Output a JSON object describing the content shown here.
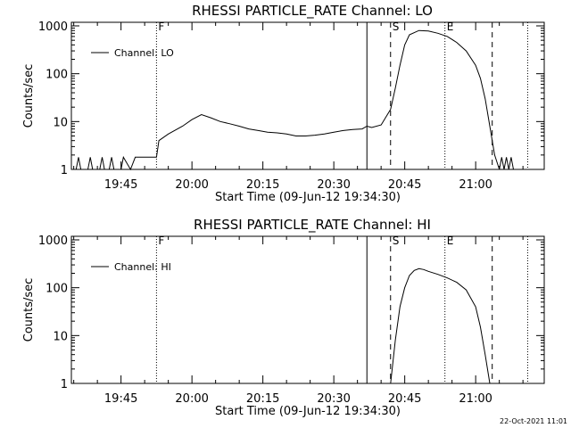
{
  "footer": {
    "timestamp": "22-Oct-2021 11:01"
  },
  "chart_data": [
    {
      "type": "line",
      "title": "RHESSI PARTICLE_RATE Channel: LO",
      "xlabel": "Start Time (09-Jun-12 19:34:30)",
      "ylabel": "Counts/sec",
      "y_scale": "log",
      "ylim": [
        1,
        1000
      ],
      "xlim": [
        "19:34:30",
        "21:14:30"
      ],
      "x_tick_labels": [
        "19:45",
        "20:00",
        "20:15",
        "20:30",
        "20:45",
        "21:00"
      ],
      "y_tick_labels": [
        "1",
        "10",
        "100",
        "1000"
      ],
      "legend": {
        "label": "Channel: LO",
        "placement": "top-left"
      },
      "markers": [
        {
          "label": "F",
          "time": "19:52:30",
          "style": "dotted"
        },
        {
          "label": "",
          "time": "20:37:00",
          "style": "solid"
        },
        {
          "label": "S",
          "time": "20:42:00",
          "style": "dashed"
        },
        {
          "label": "E",
          "time": "20:53:30",
          "style": "dotted"
        },
        {
          "label": "",
          "time": "21:03:30",
          "style": "dashed"
        },
        {
          "label": "",
          "time": "21:11:00",
          "style": "dotted"
        }
      ],
      "series": [
        {
          "name": "Channel: LO",
          "x": [
            "19:34:30",
            "19:35:30",
            "19:36:00",
            "19:36:30",
            "19:37:00",
            "19:38:00",
            "19:38:30",
            "19:39:00",
            "19:40:30",
            "19:41:00",
            "19:41:30",
            "19:42:30",
            "19:43:00",
            "19:43:30",
            "19:45:00",
            "19:45:30",
            "19:47:00",
            "19:48:00",
            "19:50:00",
            "19:52:30",
            "19:53:00",
            "19:55:00",
            "19:58:00",
            "20:00:00",
            "20:02:00",
            "20:04:00",
            "20:06:00",
            "20:08:00",
            "20:10:00",
            "20:12:00",
            "20:14:00",
            "20:16:00",
            "20:18:00",
            "20:20:00",
            "20:22:00",
            "20:24:00",
            "20:26:00",
            "20:28:00",
            "20:30:00",
            "20:32:00",
            "20:34:00",
            "20:36:00",
            "20:37:00",
            "20:38:00",
            "20:40:00",
            "20:42:00",
            "20:43:00",
            "20:44:00",
            "20:45:00",
            "20:46:00",
            "20:48:00",
            "20:50:00",
            "20:52:00",
            "20:54:00",
            "20:56:00",
            "20:58:00",
            "21:00:00",
            "21:01:00",
            "21:02:00",
            "21:03:00",
            "21:03:30",
            "21:04:00",
            "21:05:00",
            "21:05:30",
            "21:06:00",
            "21:06:30",
            "21:07:00",
            "21:07:30",
            "21:08:00",
            "21:09:00",
            "21:14:30"
          ],
          "y": [
            1,
            1,
            1.8,
            1,
            1,
            1,
            1.8,
            1,
            1,
            1.8,
            1,
            1,
            1.8,
            1,
            1,
            1.8,
            1,
            1.8,
            1.8,
            1.8,
            4,
            5.5,
            8,
            11,
            14,
            12,
            10,
            9,
            8,
            7,
            6.5,
            6,
            5.8,
            5.5,
            5,
            5,
            5.2,
            5.5,
            6,
            6.5,
            6.8,
            7,
            8,
            7.5,
            8.5,
            18,
            50,
            150,
            400,
            650,
            800,
            780,
            700,
            600,
            450,
            300,
            150,
            80,
            30,
            8,
            4,
            2,
            1,
            1.8,
            1,
            1.8,
            1,
            1.8,
            1,
            1,
            1
          ]
        }
      ]
    },
    {
      "type": "line",
      "title": "RHESSI PARTICLE_RATE Channel: HI",
      "xlabel": "Start Time (09-Jun-12 19:34:30)",
      "ylabel": "Counts/sec",
      "y_scale": "log",
      "ylim": [
        1,
        1000
      ],
      "xlim": [
        "19:34:30",
        "21:14:30"
      ],
      "x_tick_labels": [
        "19:45",
        "20:00",
        "20:15",
        "20:30",
        "20:45",
        "21:00"
      ],
      "y_tick_labels": [
        "1",
        "10",
        "100",
        "1000"
      ],
      "legend": {
        "label": "Channel: HI",
        "placement": "top-left"
      },
      "markers": [
        {
          "label": "F",
          "time": "19:52:30",
          "style": "dotted"
        },
        {
          "label": "",
          "time": "20:37:00",
          "style": "solid"
        },
        {
          "label": "S",
          "time": "20:42:00",
          "style": "dashed"
        },
        {
          "label": "E",
          "time": "20:53:30",
          "style": "dotted"
        },
        {
          "label": "",
          "time": "21:03:30",
          "style": "dashed"
        },
        {
          "label": "",
          "time": "21:11:00",
          "style": "dotted"
        }
      ],
      "series": [
        {
          "name": "Channel: HI",
          "x": [
            "20:42:00",
            "20:43:00",
            "20:44:00",
            "20:45:00",
            "20:46:00",
            "20:47:00",
            "20:48:00",
            "20:49:00",
            "20:50:00",
            "20:52:00",
            "20:54:00",
            "20:56:00",
            "20:58:00",
            "21:00:00",
            "21:01:00",
            "21:02:00",
            "21:03:00"
          ],
          "y": [
            1,
            8,
            40,
            100,
            180,
            230,
            250,
            240,
            220,
            190,
            160,
            130,
            90,
            40,
            15,
            4,
            1
          ]
        }
      ]
    }
  ]
}
